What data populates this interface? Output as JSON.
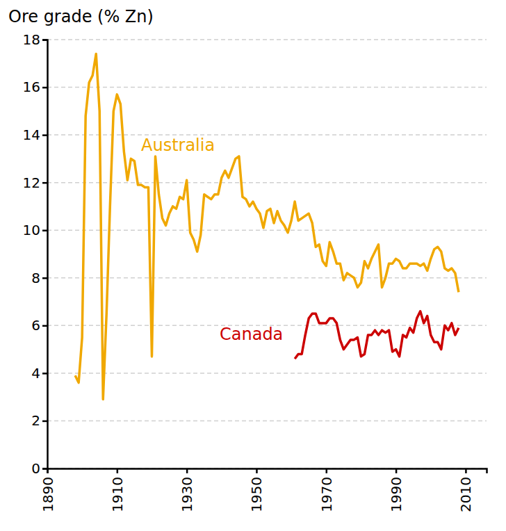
{
  "chart_data": {
    "type": "line",
    "y_label": "Ore grade (% Zn)",
    "xlim": [
      1890,
      2016
    ],
    "xticks": [
      1890,
      1910,
      1930,
      1950,
      1970,
      1990,
      2010
    ],
    "ylim": [
      0,
      18
    ],
    "yticks": [
      0,
      2,
      4,
      6,
      8,
      10,
      12,
      14,
      16,
      18
    ],
    "grid": true,
    "series": [
      {
        "name": "Australia",
        "color": "#f0a800",
        "x": [
          1898,
          1899,
          1900,
          1901,
          1902,
          1903,
          1904,
          1905,
          1906,
          1907,
          1908,
          1909,
          1910,
          1911,
          1912,
          1913,
          1914,
          1915,
          1916,
          1917,
          1918,
          1919,
          1920,
          1921,
          1922,
          1923,
          1924,
          1925,
          1926,
          1927,
          1928,
          1929,
          1930,
          1931,
          1932,
          1933,
          1934,
          1935,
          1936,
          1937,
          1938,
          1939,
          1940,
          1941,
          1942,
          1943,
          1944,
          1945,
          1946,
          1947,
          1948,
          1949,
          1950,
          1951,
          1952,
          1953,
          1954,
          1955,
          1956,
          1957,
          1958,
          1959,
          1960,
          1961,
          1962,
          1963,
          1964,
          1965,
          1966,
          1967,
          1968,
          1969,
          1970,
          1971,
          1972,
          1973,
          1974,
          1975,
          1976,
          1977,
          1978,
          1979,
          1980,
          1981,
          1982,
          1983,
          1984,
          1985,
          1986,
          1987,
          1988,
          1989,
          1990,
          1991,
          1992,
          1993,
          1994,
          1995,
          1996,
          1997,
          1998,
          1999,
          2000,
          2001,
          2002,
          2003,
          2004,
          2005,
          2006,
          2007,
          2008
        ],
        "values": [
          3.9,
          3.6,
          5.5,
          14.8,
          16.2,
          16.5,
          17.4,
          15.0,
          2.9,
          6.5,
          11.0,
          15.0,
          15.7,
          15.3,
          13.3,
          12.1,
          13.0,
          12.9,
          11.9,
          11.9,
          11.8,
          11.8,
          4.7,
          13.1,
          11.5,
          10.5,
          10.2,
          10.7,
          11.0,
          10.9,
          11.4,
          11.3,
          12.1,
          9.9,
          9.6,
          9.1,
          9.8,
          11.5,
          11.4,
          11.3,
          11.5,
          11.5,
          12.2,
          12.5,
          12.2,
          12.6,
          13.0,
          13.1,
          11.4,
          11.3,
          11.0,
          11.2,
          10.9,
          10.7,
          10.1,
          10.8,
          10.9,
          10.3,
          10.8,
          10.4,
          10.2,
          9.9,
          10.4,
          11.2,
          10.4,
          10.5,
          10.6,
          10.7,
          10.3,
          9.3,
          9.4,
          8.7,
          8.5,
          9.5,
          9.1,
          8.6,
          8.6,
          7.9,
          8.2,
          8.1,
          8.0,
          7.6,
          7.8,
          8.7,
          8.4,
          8.8,
          9.1,
          9.4,
          7.6,
          8.0,
          8.6,
          8.6,
          8.8,
          8.7,
          8.4,
          8.4,
          8.6,
          8.6,
          8.6,
          8.5,
          8.6,
          8.3,
          8.8,
          9.2,
          9.3,
          9.1,
          8.4,
          8.3,
          8.4,
          8.2,
          7.4
        ]
      },
      {
        "name": "Canada",
        "color": "#cc0000",
        "x": [
          1961,
          1962,
          1963,
          1964,
          1965,
          1966,
          1967,
          1968,
          1969,
          1970,
          1971,
          1972,
          1973,
          1974,
          1975,
          1976,
          1977,
          1978,
          1979,
          1980,
          1981,
          1982,
          1983,
          1984,
          1985,
          1986,
          1987,
          1988,
          1989,
          1990,
          1991,
          1992,
          1993,
          1994,
          1995,
          1996,
          1997,
          1998,
          1999,
          2000,
          2001,
          2002,
          2003,
          2004,
          2005,
          2006,
          2007,
          2008
        ],
        "values": [
          4.6,
          4.8,
          4.8,
          5.6,
          6.3,
          6.5,
          6.5,
          6.1,
          6.1,
          6.1,
          6.3,
          6.3,
          6.1,
          5.4,
          5.0,
          5.2,
          5.4,
          5.4,
          5.5,
          4.7,
          4.8,
          5.6,
          5.6,
          5.8,
          5.6,
          5.8,
          5.7,
          5.8,
          4.9,
          5.0,
          4.7,
          5.6,
          5.5,
          5.9,
          5.7,
          6.3,
          6.6,
          6.1,
          6.4,
          5.6,
          5.3,
          5.3,
          5.0,
          6.0,
          5.8,
          6.1,
          5.6,
          5.9
        ]
      }
    ]
  }
}
